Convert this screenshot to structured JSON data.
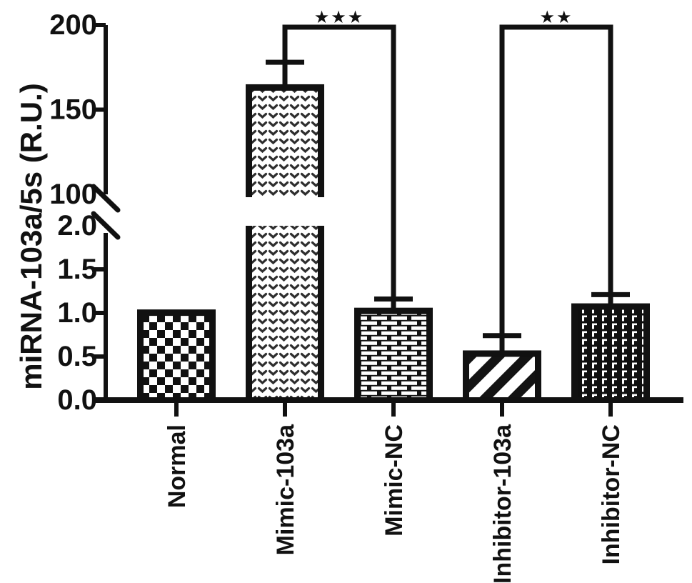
{
  "figure": {
    "background": "#ffffff",
    "ink": "#111111"
  },
  "chart_data": {
    "type": "bar",
    "title": "",
    "xlabel": "",
    "ylabel": "miRNA-103a/5s (R.U.)",
    "categories": [
      "Normal",
      "Mimic-103a",
      "Mimic-NC",
      "Inhibitor-103a",
      "Inhibitor-NC"
    ],
    "series": [
      {
        "name": "miRNA-103a/5s",
        "values": [
          1.04,
          165,
          1.06,
          0.57,
          1.11
        ]
      }
    ],
    "error_bar_tops": [
      null,
      178,
      1.16,
      0.74,
      1.21
    ],
    "bar_patterns": [
      "checkerboard",
      "chevron-dots",
      "bricks",
      "diagonal-stripes",
      "dense-hooks"
    ],
    "y_axis": {
      "broken": true,
      "lower_segment": {
        "domain": [
          0,
          2
        ],
        "ticks": [
          {
            "v": 0,
            "label": "0.0"
          },
          {
            "v": 0.5,
            "label": "0.5"
          },
          {
            "v": 1.0,
            "label": "1.0"
          },
          {
            "v": 1.5,
            "label": "1.5"
          },
          {
            "v": 2.0,
            "label": "2.0",
            "slash": true
          }
        ]
      },
      "upper_segment": {
        "domain": [
          100,
          200
        ],
        "ticks": [
          {
            "v": 100,
            "label": "100",
            "slash": true
          },
          {
            "v": 150,
            "label": "150"
          },
          {
            "v": 200,
            "label": "200"
          }
        ]
      }
    },
    "significance": [
      {
        "from": "Mimic-103a",
        "to": "Mimic-NC",
        "label": "***"
      },
      {
        "from": "Inhibitor-103a",
        "to": "Inhibitor-NC",
        "label": "**"
      }
    ],
    "legend_position": "none",
    "grid": false
  }
}
